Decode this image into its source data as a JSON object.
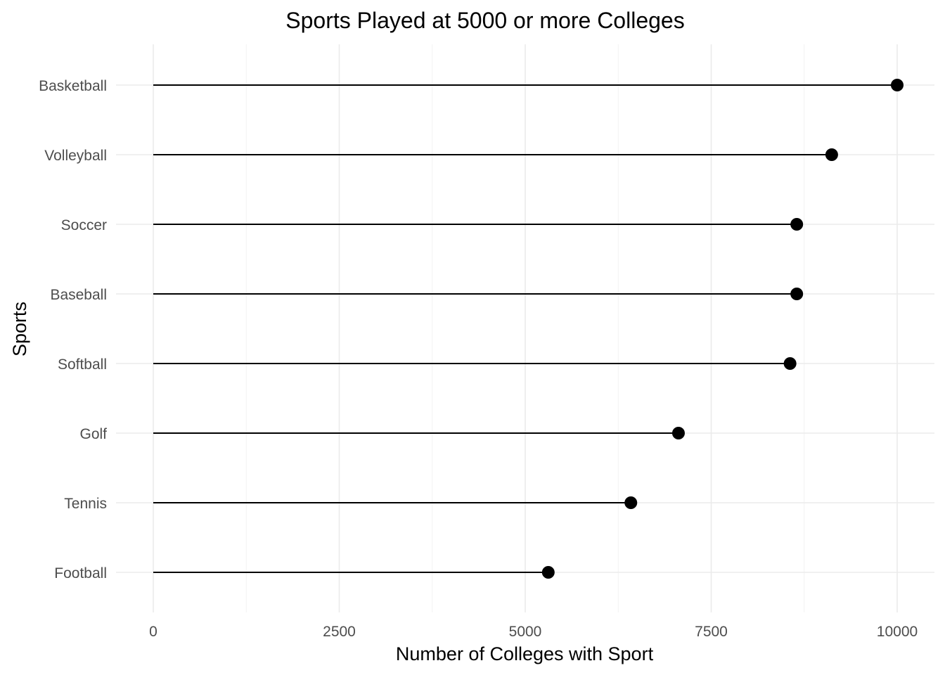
{
  "chart_data": {
    "type": "lollipop",
    "title": "Sports Played at 5000 or more Colleges",
    "xlabel": "Number of Colleges with Sport",
    "ylabel": "Sports",
    "xlim": [
      0,
      10000
    ],
    "x_ticks": [
      "0",
      "2500",
      "5000",
      "7500",
      "10000"
    ],
    "x_tick_values": [
      0,
      2500,
      5000,
      7500,
      10000
    ],
    "grid": true,
    "legend": "none",
    "categories": [
      "Basketball",
      "Volleyball",
      "Soccer",
      "Baseball",
      "Softball",
      "Golf",
      "Tennis",
      "Football"
    ],
    "values": [
      10000,
      9120,
      8650,
      8650,
      8560,
      7060,
      6420,
      5310
    ]
  },
  "colors": {
    "stem": "#000000",
    "dot": "#000000",
    "grid": "#ebebeb",
    "tick_text": "#4d4d4d",
    "background": "#ffffff"
  }
}
